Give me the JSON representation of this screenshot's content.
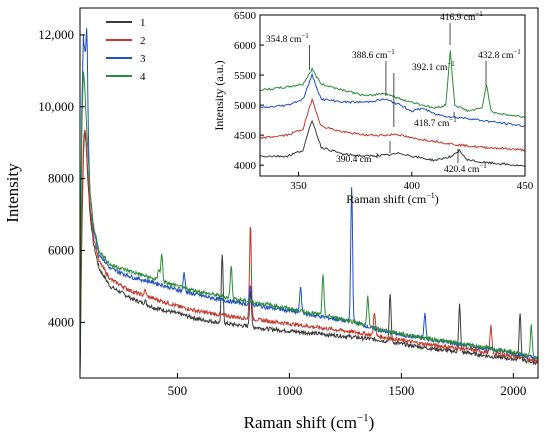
{
  "chart_data": [
    {
      "type": "line",
      "xlabel": "Raman shift (cm",
      "xlabel_sup": "−1",
      "xlabel_close": ")",
      "ylabel": "Intensity",
      "xlim": [
        65,
        2110
      ],
      "ylim": [
        2450,
        12750
      ],
      "x_ticks": [
        500,
        1000,
        1500,
        2000
      ],
      "x_tick_labels": [
        "500",
        "1000",
        "1500",
        "2000"
      ],
      "y_ticks": [
        4000,
        6000,
        8000,
        10000,
        12000
      ],
      "y_tick_labels": [
        "4000",
        "6000",
        "8000",
        "10,000",
        "12,000"
      ],
      "legend": {
        "position": "top-left",
        "entries": [
          "1",
          "2",
          "3",
          "4"
        ]
      },
      "series": [
        {
          "name": "1",
          "color": "#3a3a3a",
          "points": [
            [
              65,
              2500
            ],
            [
              72,
              6000
            ],
            [
              80,
              8600
            ],
            [
              86,
              9400
            ],
            [
              92,
              9000
            ],
            [
              100,
              8000
            ],
            [
              110,
              7000
            ],
            [
              125,
              6200
            ],
            [
              150,
              5500
            ],
            [
              200,
              5000
            ],
            [
              300,
              4650
            ],
            [
              400,
              4400
            ],
            [
              500,
              4250
            ],
            [
              600,
              4080
            ],
            [
              700,
              3980
            ],
            [
              800,
              3900
            ],
            [
              900,
              3820
            ],
            [
              1000,
              3760
            ],
            [
              1100,
              3700
            ],
            [
              1200,
              3640
            ],
            [
              1300,
              3580
            ],
            [
              1400,
              3510
            ],
            [
              1500,
              3400
            ],
            [
              1600,
              3300
            ],
            [
              1700,
              3220
            ],
            [
              1800,
              3150
            ],
            [
              1900,
              3050
            ],
            [
              2000,
              2980
            ],
            [
              2100,
              2880
            ]
          ],
          "peaks": [
            [
              356,
              4600
            ],
            [
              700,
              5900
            ],
            [
              826,
              4950
            ],
            [
              1450,
              4800
            ],
            [
              1760,
              4500
            ],
            [
              2030,
              4300
            ]
          ]
        },
        {
          "name": "2",
          "color": "#c0392b",
          "points": [
            [
              65,
              2600
            ],
            [
              72,
              6500
            ],
            [
              80,
              8900
            ],
            [
              86,
              9450
            ],
            [
              92,
              9100
            ],
            [
              100,
              8200
            ],
            [
              110,
              7200
            ],
            [
              125,
              6400
            ],
            [
              150,
              5700
            ],
            [
              200,
              5200
            ],
            [
              300,
              4850
            ],
            [
              400,
              4650
            ],
            [
              500,
              4450
            ],
            [
              600,
              4300
            ],
            [
              700,
              4200
            ],
            [
              800,
              4120
            ],
            [
              900,
              4040
            ],
            [
              1000,
              3960
            ],
            [
              1100,
              3880
            ],
            [
              1200,
              3800
            ],
            [
              1300,
              3720
            ],
            [
              1400,
              3610
            ],
            [
              1500,
              3500
            ],
            [
              1600,
              3400
            ],
            [
              1700,
              3320
            ],
            [
              1800,
              3250
            ],
            [
              1900,
              3150
            ],
            [
              2000,
              3060
            ],
            [
              2100,
              2950
            ]
          ],
          "peaks": [
            [
              356,
              4900
            ],
            [
              826,
              6750
            ],
            [
              1380,
              4300
            ],
            [
              1900,
              3900
            ]
          ]
        },
        {
          "name": "3",
          "color": "#1f4fbf",
          "points": [
            [
              65,
              2700
            ],
            [
              72,
              9500
            ],
            [
              80,
              12000
            ],
            [
              86,
              11500
            ],
            [
              92,
              10500
            ],
            [
              100,
              9000
            ],
            [
              110,
              7600
            ],
            [
              125,
              6600
            ],
            [
              150,
              5900
            ],
            [
              200,
              5500
            ],
            [
              300,
              5250
            ],
            [
              400,
              5100
            ],
            [
              500,
              4900
            ],
            [
              600,
              4750
            ],
            [
              700,
              4620
            ],
            [
              800,
              4520
            ],
            [
              900,
              4420
            ],
            [
              1000,
              4320
            ],
            [
              1100,
              4200
            ],
            [
              1200,
              4100
            ],
            [
              1300,
              3980
            ],
            [
              1400,
              3780
            ],
            [
              1500,
              3650
            ],
            [
              1600,
              3550
            ],
            [
              1700,
              3450
            ],
            [
              1800,
              3350
            ],
            [
              1900,
              3250
            ],
            [
              2000,
              3140
            ],
            [
              2100,
              3000
            ]
          ],
          "peaks": [
            [
              96,
              12050
            ],
            [
              530,
              5400
            ],
            [
              826,
              5000
            ],
            [
              1050,
              5000
            ],
            [
              1278,
              7800
            ],
            [
              1605,
              4250
            ]
          ]
        },
        {
          "name": "4",
          "color": "#2e8b3a",
          "points": [
            [
              65,
              2800
            ],
            [
              72,
              9000
            ],
            [
              80,
              11000
            ],
            [
              86,
              10600
            ],
            [
              92,
              9800
            ],
            [
              100,
              8800
            ],
            [
              110,
              7600
            ],
            [
              125,
              6700
            ],
            [
              150,
              6000
            ],
            [
              200,
              5600
            ],
            [
              300,
              5400
            ],
            [
              400,
              5200
            ],
            [
              500,
              5000
            ],
            [
              600,
              4850
            ],
            [
              700,
              4720
            ],
            [
              800,
              4600
            ],
            [
              900,
              4500
            ],
            [
              1000,
              4380
            ],
            [
              1100,
              4260
            ],
            [
              1200,
              4140
            ],
            [
              1300,
              4000
            ],
            [
              1400,
              3800
            ],
            [
              1500,
              3680
            ],
            [
              1600,
              3570
            ],
            [
              1700,
              3470
            ],
            [
              1800,
              3370
            ],
            [
              1900,
              3270
            ],
            [
              2000,
              3160
            ],
            [
              2100,
              3020
            ]
          ],
          "peaks": [
            [
              417,
              5500
            ],
            [
              430,
              5900
            ],
            [
              740,
              5600
            ],
            [
              1150,
              5300
            ],
            [
              1350,
              4700
            ],
            [
              2080,
              3900
            ]
          ]
        }
      ]
    },
    {
      "type": "line",
      "xlabel": "Raman shift (cm",
      "xlabel_sup": "−1",
      "xlabel_close": ")",
      "ylabel": "Intensity (a.u.)",
      "xlim": [
        333,
        450
      ],
      "ylim": [
        3820,
        6500
      ],
      "x_ticks": [
        350,
        400,
        450
      ],
      "x_tick_labels": [
        "350",
        "400",
        "450"
      ],
      "y_ticks": [
        4000,
        4500,
        5000,
        5500,
        6000,
        6500
      ],
      "y_tick_labels": [
        "4000",
        "4500",
        "5000",
        "5500",
        "6000",
        "6500"
      ],
      "annotations": [
        {
          "text": "354.8 cm",
          "sup": "−1",
          "x": 354.8
        },
        {
          "text": "388.6 cm",
          "sup": "−1",
          "x": 388.6
        },
        {
          "text": "392.1 cm",
          "sup": "−1",
          "x": 392.1
        },
        {
          "text": "416.9 cm",
          "sup": "−1",
          "x": 416.9
        },
        {
          "text": "432.8 cm",
          "sup": "−1",
          "x": 432.8
        },
        {
          "text": "418.7 cm",
          "sup": "−1",
          "x": 418.7
        },
        {
          "text": "390.4 cm",
          "sup": "−1",
          "x": 390.4
        },
        {
          "text": "420.4 cm",
          "sup": "−1",
          "x": 420.4
        }
      ],
      "series": [
        {
          "name": "1",
          "color": "#3a3a3a",
          "points": [
            [
              333,
              4150
            ],
            [
              345,
              4150
            ],
            [
              352,
              4250
            ],
            [
              356,
              4750
            ],
            [
              360,
              4300
            ],
            [
              370,
              4180
            ],
            [
              380,
              4150
            ],
            [
              390,
              4170
            ],
            [
              395,
              4200
            ],
            [
              400,
              4150
            ],
            [
              410,
              4080
            ],
            [
              418,
              4150
            ],
            [
              421,
              4250
            ],
            [
              424,
              4100
            ],
            [
              430,
              4050
            ],
            [
              440,
              4020
            ],
            [
              450,
              3980
            ]
          ]
        },
        {
          "name": "2",
          "color": "#c0392b",
          "points": [
            [
              333,
              4450
            ],
            [
              345,
              4500
            ],
            [
              352,
              4600
            ],
            [
              356,
              5100
            ],
            [
              360,
              4650
            ],
            [
              370,
              4550
            ],
            [
              380,
              4500
            ],
            [
              390,
              4500
            ],
            [
              393,
              4520
            ],
            [
              400,
              4450
            ],
            [
              410,
              4400
            ],
            [
              418,
              4350
            ],
            [
              430,
              4300
            ],
            [
              440,
              4280
            ],
            [
              450,
              4250
            ]
          ]
        },
        {
          "name": "3",
          "color": "#1f4fbf",
          "points": [
            [
              333,
              4950
            ],
            [
              345,
              5000
            ],
            [
              352,
              5100
            ],
            [
              356,
              5500
            ],
            [
              360,
              5100
            ],
            [
              370,
              5050
            ],
            [
              380,
              5050
            ],
            [
              388,
              5100
            ],
            [
              395,
              5000
            ],
            [
              400,
              4900
            ],
            [
              405,
              4950
            ],
            [
              410,
              4850
            ],
            [
              418,
              4800
            ],
            [
              425,
              4780
            ],
            [
              430,
              4750
            ],
            [
              440,
              4700
            ],
            [
              450,
              4650
            ]
          ]
        },
        {
          "name": "4",
          "color": "#2e8b3a",
          "points": [
            [
              333,
              5250
            ],
            [
              345,
              5300
            ],
            [
              352,
              5350
            ],
            [
              356,
              5600
            ],
            [
              360,
              5350
            ],
            [
              370,
              5250
            ],
            [
              380,
              5150
            ],
            [
              388,
              5200
            ],
            [
              395,
              5100
            ],
            [
              400,
              5050
            ],
            [
              410,
              4950
            ],
            [
              415,
              5000
            ],
            [
              417,
              5900
            ],
            [
              419,
              5000
            ],
            [
              425,
              4900
            ],
            [
              431,
              4950
            ],
            [
              433,
              5350
            ],
            [
              435,
              4900
            ],
            [
              440,
              4850
            ],
            [
              450,
              4800
            ]
          ]
        }
      ]
    }
  ]
}
